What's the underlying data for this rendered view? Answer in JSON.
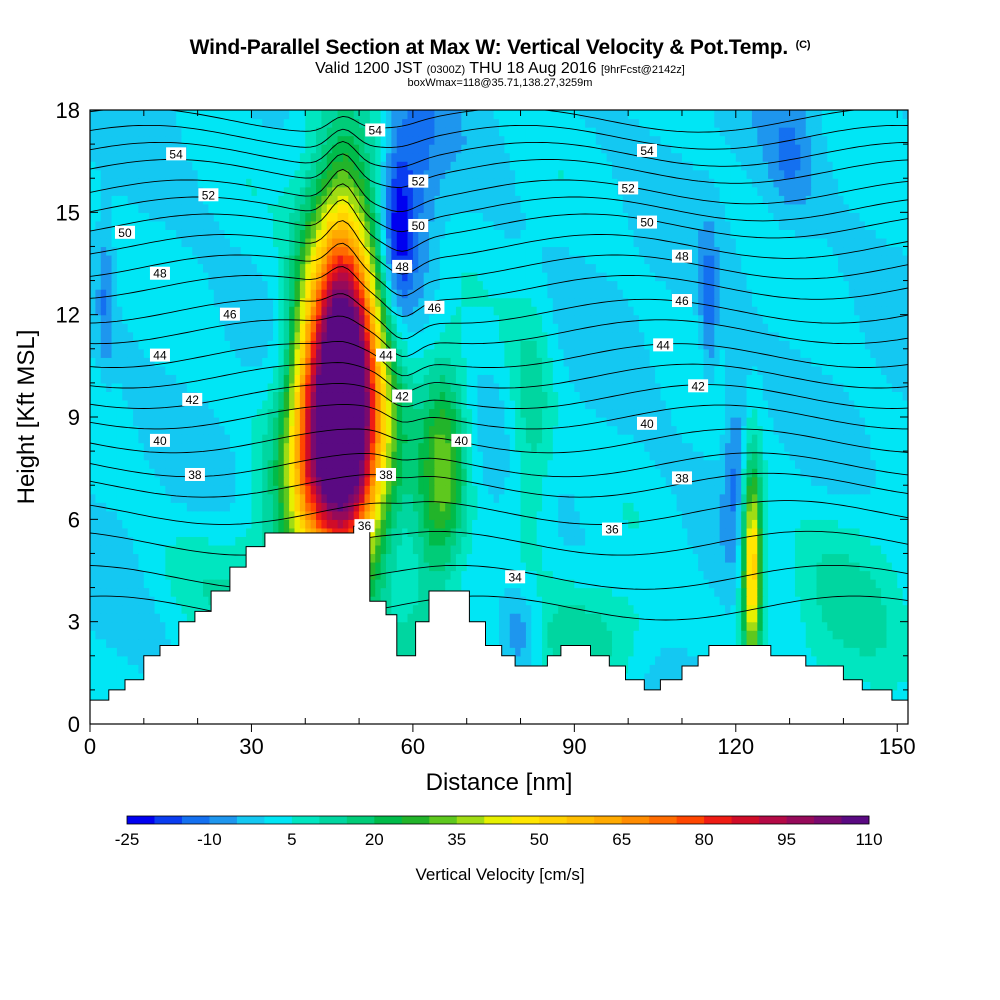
{
  "header": {
    "title": "Wind-Parallel Section at Max W: Vertical Velocity & Pot.Temp.",
    "copyright": "(C)",
    "subtitle_valid": "Valid 1200 JST",
    "subtitle_utc": "(0300Z)",
    "subtitle_date": "THU 18 Aug 2016",
    "subtitle_fcst": "[9hrFcst@2142z]",
    "subtitle_box": "boxWmax=118@35.71,138.27,3259m"
  },
  "chart_data": {
    "type": "heatmap",
    "xlabel": "Distance [nm]",
    "ylabel": "Height [Kft MSL]",
    "xlim": [
      0,
      152
    ],
    "ylim": [
      0,
      18
    ],
    "xticks": [
      0,
      30,
      60,
      90,
      120,
      150
    ],
    "yticks": [
      0,
      3,
      6,
      9,
      12,
      15,
      18
    ],
    "colorbar": {
      "label": "Vertical Velocity [cm/s]",
      "levels": [
        -25,
        -20,
        -15,
        -10,
        -5,
        0,
        5,
        10,
        15,
        20,
        25,
        30,
        35,
        40,
        45,
        50,
        55,
        60,
        65,
        70,
        75,
        80,
        85,
        90,
        95,
        100,
        105,
        110
      ],
      "tick_labels": [
        "-25",
        "-10",
        "5",
        "20",
        "35",
        "50",
        "65",
        "80",
        "95",
        "110"
      ],
      "colors": [
        "#0000f0",
        "#0a3cf0",
        "#1470f0",
        "#1e96ee",
        "#14c8f2",
        "#00e6f5",
        "#00e6c0",
        "#00d6a0",
        "#00cc78",
        "#00bb4a",
        "#22b42a",
        "#5ec81e",
        "#a0dc14",
        "#e6f000",
        "#ffe600",
        "#ffd200",
        "#ffbe00",
        "#ffaa00",
        "#ff8c00",
        "#ff6c00",
        "#ff4600",
        "#ef1c14",
        "#d00c28",
        "#b40a46",
        "#960a5a",
        "#7a0a6e",
        "#5a0a82"
      ]
    },
    "background_w": 0,
    "w_features": [
      {
        "x": 47,
        "y": 10.7,
        "sx": 4.6,
        "sy": 3.4,
        "w": 118
      },
      {
        "x": 46,
        "y": 7.6,
        "sx": 6.8,
        "sy": 2.2,
        "w": 58
      },
      {
        "x": 40,
        "y": 9.4,
        "sx": 2.4,
        "sy": 2.6,
        "w": 18
      },
      {
        "x": 66,
        "y": 7.8,
        "sx": 3.0,
        "sy": 2.2,
        "w": 28
      },
      {
        "x": 63,
        "y": 5.2,
        "sx": 3.0,
        "sy": 1.8,
        "w": 12
      },
      {
        "x": 123,
        "y": 4.6,
        "sx": 1.3,
        "sy": 2.0,
        "w": 58
      },
      {
        "x": 57,
        "y": 14.6,
        "sx": 2.2,
        "sy": 1.8,
        "w": -22
      },
      {
        "x": 61,
        "y": 15.8,
        "sx": 3.5,
        "sy": 2.5,
        "w": -10
      },
      {
        "x": 80,
        "y": 2.7,
        "sx": 3.0,
        "sy": 1.1,
        "w": -16
      },
      {
        "x": 120,
        "y": 7.8,
        "sx": 1.6,
        "sy": 1.8,
        "w": -13
      },
      {
        "x": 115,
        "y": 12.0,
        "sx": 1.1,
        "sy": 1.6,
        "w": -12
      },
      {
        "x": 130,
        "y": 16.5,
        "sx": 3.0,
        "sy": 1.5,
        "w": -8
      },
      {
        "x": 3,
        "y": 12.5,
        "sx": 1.0,
        "sy": 1.5,
        "w": -10
      },
      {
        "x": 64,
        "y": 1.6,
        "sx": 12,
        "sy": 1.4,
        "w": 12
      },
      {
        "x": 140,
        "y": 3.6,
        "sx": 10,
        "sy": 2.2,
        "w": 9
      },
      {
        "x": 28,
        "y": 4.4,
        "sx": 12,
        "sy": 1.4,
        "w": 8
      },
      {
        "x": 95,
        "y": 2.6,
        "sx": 8,
        "sy": 1.2,
        "w": 12
      },
      {
        "x": 82,
        "y": 8.6,
        "sx": 3,
        "sy": 2.6,
        "w": 14
      }
    ],
    "terrain_steps": [
      [
        0,
        0.7
      ],
      [
        3.5,
        1.0
      ],
      [
        6.5,
        1.3
      ],
      [
        10,
        2.0
      ],
      [
        13,
        2.3
      ],
      [
        16.5,
        3.0
      ],
      [
        19.5,
        3.3
      ],
      [
        22.5,
        3.9
      ],
      [
        26,
        4.6
      ],
      [
        29,
        5.2
      ],
      [
        32.5,
        5.6
      ],
      [
        49,
        5.8
      ],
      [
        49.2,
        5.8
      ],
      [
        52,
        3.6
      ],
      [
        55,
        3.2
      ],
      [
        57,
        2.0
      ],
      [
        60.5,
        3.0
      ],
      [
        63,
        3.9
      ],
      [
        70.5,
        3.0
      ],
      [
        73.5,
        2.3
      ],
      [
        76.5,
        2.0
      ],
      [
        79,
        1.7
      ],
      [
        85,
        2.0
      ],
      [
        87.5,
        2.3
      ],
      [
        93,
        2.0
      ],
      [
        96.5,
        1.7
      ],
      [
        99.5,
        1.3
      ],
      [
        103,
        1.0
      ],
      [
        106,
        1.3
      ],
      [
        110,
        1.7
      ],
      [
        113,
        2.0
      ],
      [
        115,
        2.3
      ],
      [
        126.5,
        2.0
      ],
      [
        133,
        1.7
      ],
      [
        140,
        1.3
      ],
      [
        143.5,
        1.0
      ],
      [
        149,
        0.7
      ],
      [
        152,
        0.7
      ]
    ],
    "isentropes": [
      {
        "theta": 34,
        "y": 3.4
      },
      {
        "theta": 35,
        "y": 4.3
      },
      {
        "theta": 36,
        "y": 5.3
      },
      {
        "theta": 37,
        "y": 6.2
      },
      {
        "theta": 38,
        "y": 7.0
      },
      {
        "theta": 39,
        "y": 7.6
      },
      {
        "theta": 40,
        "y": 8.3
      },
      {
        "theta": 41,
        "y": 9.0
      },
      {
        "theta": 42,
        "y": 9.6
      },
      {
        "theta": 43,
        "y": 10.2
      },
      {
        "theta": 44,
        "y": 10.8
      },
      {
        "theta": 45,
        "y": 11.5
      },
      {
        "theta": 46,
        "y": 12.1
      },
      {
        "theta": 47,
        "y": 12.8
      },
      {
        "theta": 48,
        "y": 13.4
      },
      {
        "theta": 49,
        "y": 14.0
      },
      {
        "theta": 50,
        "y": 14.6
      },
      {
        "theta": 51,
        "y": 15.1
      },
      {
        "theta": 52,
        "y": 15.6
      },
      {
        "theta": 53,
        "y": 16.2
      },
      {
        "theta": 54,
        "y": 16.7
      },
      {
        "theta": 55,
        "y": 17.2
      },
      {
        "theta": 56,
        "y": 17.7
      }
    ],
    "isentrope_labels": [
      {
        "text": "54",
        "x": 16,
        "y": 16.7
      },
      {
        "text": "52",
        "x": 22,
        "y": 15.5
      },
      {
        "text": "50",
        "x": 6.5,
        "y": 14.4
      },
      {
        "text": "48",
        "x": 13,
        "y": 13.2
      },
      {
        "text": "46",
        "x": 26,
        "y": 12.0
      },
      {
        "text": "44",
        "x": 13,
        "y": 10.8
      },
      {
        "text": "42",
        "x": 19,
        "y": 9.5
      },
      {
        "text": "40",
        "x": 13,
        "y": 8.3
      },
      {
        "text": "38",
        "x": 19.5,
        "y": 7.3
      },
      {
        "text": "54",
        "x": 53,
        "y": 17.4
      },
      {
        "text": "52",
        "x": 61,
        "y": 15.9
      },
      {
        "text": "50",
        "x": 61,
        "y": 14.6
      },
      {
        "text": "48",
        "x": 58,
        "y": 13.4
      },
      {
        "text": "46",
        "x": 64,
        "y": 12.2
      },
      {
        "text": "44",
        "x": 55,
        "y": 10.8
      },
      {
        "text": "42",
        "x": 58,
        "y": 9.6
      },
      {
        "text": "40",
        "x": 69,
        "y": 8.3
      },
      {
        "text": "38",
        "x": 55,
        "y": 7.3
      },
      {
        "text": "36",
        "x": 51,
        "y": 5.8
      },
      {
        "text": "34",
        "x": 79,
        "y": 4.3
      },
      {
        "text": "54",
        "x": 103.5,
        "y": 16.8
      },
      {
        "text": "52",
        "x": 100,
        "y": 15.7
      },
      {
        "text": "50",
        "x": 103.5,
        "y": 14.7
      },
      {
        "text": "48",
        "x": 110,
        "y": 13.7
      },
      {
        "text": "46",
        "x": 110,
        "y": 12.4
      },
      {
        "text": "44",
        "x": 106.5,
        "y": 11.1
      },
      {
        "text": "42",
        "x": 113,
        "y": 9.9
      },
      {
        "text": "40",
        "x": 103.5,
        "y": 8.8
      },
      {
        "text": "38",
        "x": 110,
        "y": 7.2
      },
      {
        "text": "36",
        "x": 97,
        "y": 5.7
      }
    ]
  }
}
